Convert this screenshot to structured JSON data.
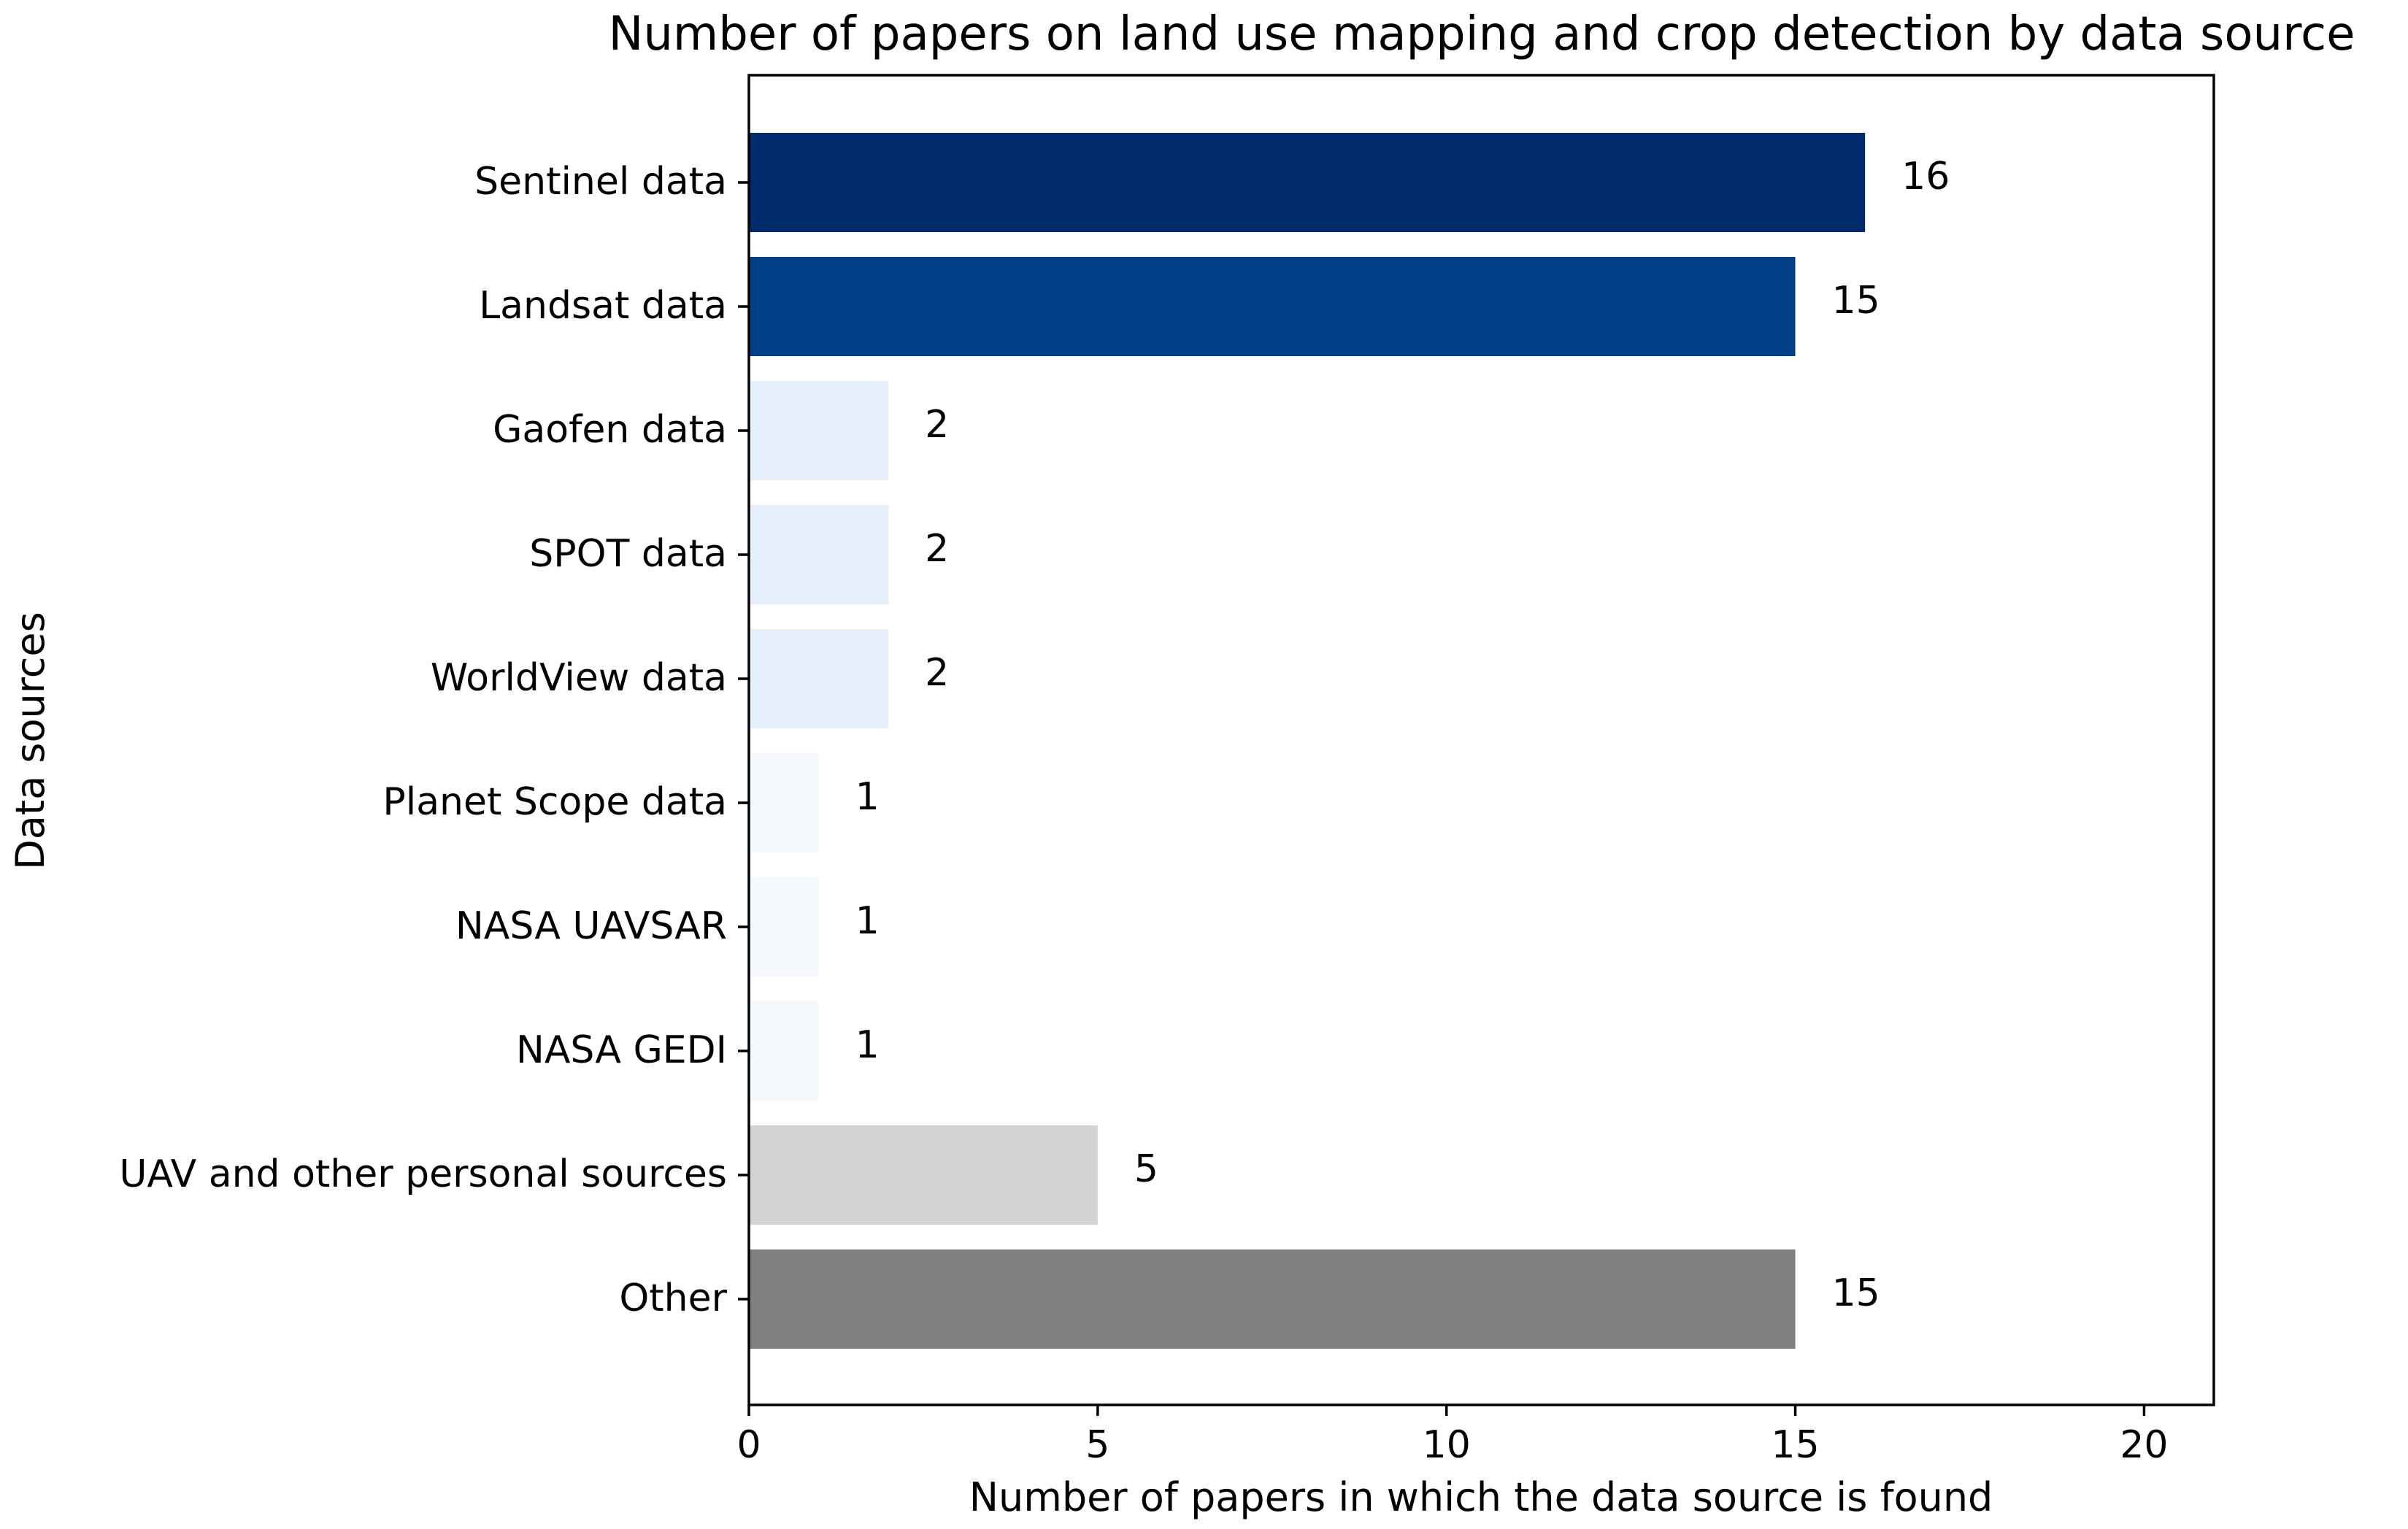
{
  "chart_data": {
    "type": "bar",
    "orientation": "horizontal",
    "title": "Number of papers on land use mapping and crop detection by data source",
    "xlabel": "Number of papers in which the data source is found",
    "ylabel": "Data sources",
    "xlim": [
      0,
      21
    ],
    "xticks": [
      0,
      5,
      10,
      15,
      20
    ],
    "grid": false,
    "legend": "none",
    "categories": [
      "Sentinel data",
      "Landsat data",
      "Gaofen data",
      "SPOT data",
      "WorldView data",
      "Planet Scope data",
      "NASA UAVSAR",
      "NASA GEDI",
      "UAV and other personal sources",
      "Other"
    ],
    "values": [
      16,
      15,
      2,
      2,
      2,
      1,
      1,
      1,
      5,
      15
    ],
    "colors": [
      "#002a6b",
      "#003f86",
      "#e6f0fa",
      "#e6f0fa",
      "#e6f0fa",
      "#f5f9fe",
      "#f5f9fe",
      "#f5f9fe",
      "#d3d3d3",
      "#808080"
    ]
  }
}
